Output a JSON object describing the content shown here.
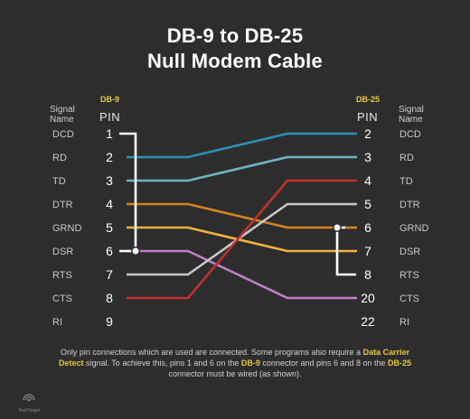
{
  "title_line1": "DB-9 to DB-25",
  "title_line2": "Null Modem Cable",
  "left": {
    "signal_header_1": "Signal",
    "signal_header_2": "Name",
    "connector": "DB-9",
    "pin_header": "PIN",
    "rows": [
      {
        "signal": "DCD",
        "pin": "1"
      },
      {
        "signal": "RD",
        "pin": "2"
      },
      {
        "signal": "TD",
        "pin": "3"
      },
      {
        "signal": "DTR",
        "pin": "4"
      },
      {
        "signal": "GRND",
        "pin": "5"
      },
      {
        "signal": "DSR",
        "pin": "6"
      },
      {
        "signal": "RTS",
        "pin": "7"
      },
      {
        "signal": "CTS",
        "pin": "8"
      },
      {
        "signal": "RI",
        "pin": "9"
      }
    ]
  },
  "right": {
    "signal_header_1": "Signal",
    "signal_header_2": "Name",
    "connector": "DB-25",
    "pin_header": "PIN",
    "rows": [
      {
        "signal": "DCD",
        "pin": "2"
      },
      {
        "signal": "RD",
        "pin": "3"
      },
      {
        "signal": "TD",
        "pin": "4"
      },
      {
        "signal": "DTR",
        "pin": "5"
      },
      {
        "signal": "GRND",
        "pin": "6"
      },
      {
        "signal": "DSR",
        "pin": "7"
      },
      {
        "signal": "RTS",
        "pin": "8"
      },
      {
        "signal": "CTS",
        "pin": "20"
      },
      {
        "signal": "RI",
        "pin": "22"
      }
    ]
  },
  "wires": [
    {
      "from_pin": "2",
      "to_pin": "2",
      "color": "#2b8fb2"
    },
    {
      "from_pin": "3",
      "to_pin": "3",
      "color": "#6fb3c0"
    },
    {
      "from_pin": "4",
      "to_pin": "6",
      "color": "#d4821f"
    },
    {
      "from_pin": "5",
      "to_pin": "7",
      "color": "#f0b23c"
    },
    {
      "from_pin": "6",
      "to_pin": "20",
      "color": "#c27fc6"
    },
    {
      "from_pin": "7",
      "to_pin": "5",
      "color": "#c8c8c8"
    },
    {
      "from_pin": "8",
      "to_pin": "4",
      "color": "#c0312e"
    }
  ],
  "jumpers": [
    {
      "connector": "DB-9",
      "pins": [
        "1",
        "6"
      ],
      "color": "#ffffff"
    },
    {
      "connector": "DB-25",
      "pins": [
        "6",
        "8"
      ],
      "color": "#ffffff"
    }
  ],
  "note": {
    "p1": "Only pin connections which are used are connected. Some programs also require a ",
    "h1": "Data Carrier Detect",
    "p2": " signal. To achieve this, pins 1 and 6 on the ",
    "h2": "DB-9",
    "p3": " connector and pins 6 and 8 on the ",
    "h3": "DB-25",
    "p4": " connector must be wired (as shown)."
  },
  "logo_text": "TechTarget"
}
